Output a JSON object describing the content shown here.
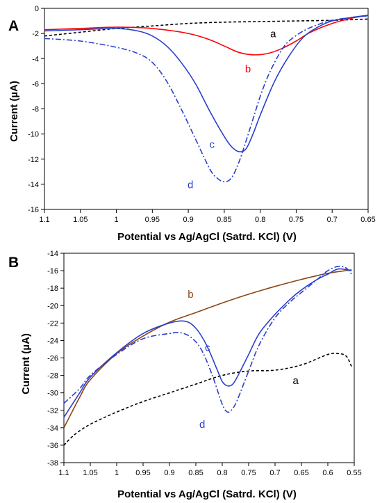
{
  "chart_data": [
    {
      "panel": "A",
      "type": "line",
      "xlabel": "Potential vs Ag/AgCl (Satrd. KCl) (V)",
      "ylabel": "Current (µA)",
      "xlim": [
        1.1,
        0.65
      ],
      "ylim": [
        -16,
        0
      ],
      "xticks": [
        "1.1",
        "1.05",
        "1",
        "0.95",
        "0.9",
        "0.85",
        "0.8",
        "0.75",
        "0.7",
        "0.65"
      ],
      "yticks": [
        "0",
        "-2",
        "-4",
        "-6",
        "-8",
        "-10",
        "-12",
        "-14",
        "-16"
      ],
      "series": [
        {
          "name": "a",
          "color": "#000000",
          "dash": "4,3",
          "x": [
            1.1,
            1.05,
            1.0,
            0.95,
            0.9,
            0.85,
            0.8,
            0.75,
            0.7,
            0.65
          ],
          "y": [
            -2.2,
            -1.9,
            -1.6,
            -1.4,
            -1.2,
            -1.1,
            -1.05,
            -1.0,
            -0.95,
            -0.85
          ]
        },
        {
          "name": "b",
          "color": "#ff0000",
          "dash": "",
          "x": [
            1.1,
            1.05,
            1.0,
            0.95,
            0.9,
            0.87,
            0.85,
            0.83,
            0.81,
            0.79,
            0.77,
            0.75,
            0.73,
            0.7,
            0.67,
            0.65
          ],
          "y": [
            -1.7,
            -1.6,
            -1.5,
            -1.6,
            -2.0,
            -2.5,
            -3.0,
            -3.5,
            -3.7,
            -3.6,
            -3.2,
            -2.6,
            -1.9,
            -1.2,
            -0.75,
            -0.55
          ]
        },
        {
          "name": "c",
          "color": "#2a3fcc",
          "dash": "",
          "x": [
            1.1,
            1.05,
            1.0,
            0.97,
            0.95,
            0.93,
            0.91,
            0.89,
            0.87,
            0.85,
            0.84,
            0.83,
            0.82,
            0.81,
            0.8,
            0.78,
            0.76,
            0.74,
            0.72,
            0.7,
            0.67,
            0.65
          ],
          "y": [
            -1.8,
            -1.7,
            -1.6,
            -1.8,
            -2.2,
            -3.0,
            -4.3,
            -6.0,
            -8.2,
            -10.2,
            -11.0,
            -11.4,
            -11.2,
            -10.0,
            -8.5,
            -5.8,
            -3.8,
            -2.3,
            -1.5,
            -1.0,
            -0.7,
            -0.55
          ]
        },
        {
          "name": "d",
          "color": "#2a3fcc",
          "dash": "8,3,2,3",
          "x": [
            1.1,
            1.05,
            1.0,
            0.97,
            0.95,
            0.93,
            0.91,
            0.89,
            0.87,
            0.86,
            0.85,
            0.84,
            0.83,
            0.82,
            0.81,
            0.8,
            0.79,
            0.78,
            0.77,
            0.76,
            0.74,
            0.72,
            0.7,
            0.67,
            0.65
          ],
          "y": [
            -2.4,
            -2.6,
            -3.1,
            -3.6,
            -4.3,
            -5.8,
            -8.0,
            -10.4,
            -12.8,
            -13.5,
            -13.8,
            -13.5,
            -12.3,
            -10.6,
            -8.8,
            -7.0,
            -5.5,
            -4.3,
            -3.3,
            -2.6,
            -1.8,
            -1.3,
            -0.95,
            -0.7,
            -0.6
          ]
        }
      ],
      "labels": [
        {
          "text": "a",
          "x": 0.782,
          "y": -2.3,
          "color": "#000000"
        },
        {
          "text": "b",
          "x": 0.817,
          "y": -5.1,
          "color": "#ff0000"
        },
        {
          "text": "c",
          "x": 0.867,
          "y": -11.1,
          "color": "#2a3fcc"
        },
        {
          "text": "d",
          "x": 0.897,
          "y": -14.3,
          "color": "#2a3fcc"
        }
      ],
      "letter": "A"
    },
    {
      "panel": "B",
      "type": "line",
      "xlabel": "Potential vs Ag/AgCl (Satrd. KCl) (V)",
      "ylabel": "Current (µA)",
      "xlim": [
        1.1,
        0.55
      ],
      "ylim": [
        -38,
        -14
      ],
      "xticks": [
        "1.1",
        "1.05",
        "1",
        "0.95",
        "0.9",
        "0.85",
        "0.8",
        "0.75",
        "0.7",
        "0.65",
        "0.6",
        "0.55"
      ],
      "yticks": [
        "-14",
        "-16",
        "-18",
        "-20",
        "-22",
        "-24",
        "-26",
        "-28",
        "-30",
        "-32",
        "-34",
        "-36",
        "-38"
      ],
      "series": [
        {
          "name": "a",
          "color": "#000000",
          "dash": "4,3",
          "x": [
            1.1,
            1.08,
            1.05,
            1.0,
            0.95,
            0.9,
            0.85,
            0.8,
            0.75,
            0.7,
            0.65,
            0.6,
            0.58,
            0.565,
            0.555
          ],
          "y": [
            -36.0,
            -34.8,
            -33.6,
            -32.2,
            -31.0,
            -30.0,
            -29.0,
            -28.0,
            -27.5,
            -27.4,
            -26.8,
            -25.6,
            -25.5,
            -25.8,
            -27.0
          ]
        },
        {
          "name": "b",
          "color": "#8b4513",
          "dash": "",
          "x": [
            1.1,
            1.07,
            1.05,
            1.0,
            0.95,
            0.9,
            0.85,
            0.8,
            0.75,
            0.7,
            0.65,
            0.6,
            0.555
          ],
          "y": [
            -34.0,
            -30.5,
            -28.5,
            -25.5,
            -23.5,
            -21.9,
            -20.8,
            -19.7,
            -18.7,
            -17.8,
            -17.0,
            -16.3,
            -15.9
          ]
        },
        {
          "name": "c",
          "color": "#2a3fcc",
          "dash": "",
          "x": [
            1.1,
            1.07,
            1.05,
            1.0,
            0.95,
            0.9,
            0.87,
            0.85,
            0.83,
            0.81,
            0.8,
            0.79,
            0.78,
            0.77,
            0.75,
            0.73,
            0.7,
            0.67,
            0.65,
            0.62,
            0.6,
            0.58,
            0.555
          ],
          "y": [
            -32.8,
            -30.0,
            -28.2,
            -25.4,
            -23.2,
            -22.0,
            -21.8,
            -22.6,
            -24.5,
            -27.3,
            -28.7,
            -29.2,
            -29.0,
            -28.0,
            -25.6,
            -23.2,
            -21.0,
            -19.2,
            -18.2,
            -17.0,
            -16.4,
            -15.8,
            -16.0
          ]
        },
        {
          "name": "d",
          "color": "#2a3fcc",
          "dash": "8,3,2,3",
          "x": [
            1.1,
            1.07,
            1.05,
            1.0,
            0.95,
            0.9,
            0.88,
            0.86,
            0.84,
            0.82,
            0.8,
            0.79,
            0.78,
            0.77,
            0.75,
            0.73,
            0.7,
            0.67,
            0.65,
            0.62,
            0.6,
            0.58,
            0.565,
            0.555
          ],
          "y": [
            -31.2,
            -29.5,
            -28.0,
            -25.6,
            -23.8,
            -23.2,
            -23.1,
            -23.6,
            -25.0,
            -27.8,
            -31.3,
            -32.2,
            -31.8,
            -30.6,
            -27.5,
            -24.5,
            -21.4,
            -19.5,
            -18.5,
            -17.0,
            -16.0,
            -15.5,
            -15.7,
            -16.4
          ]
        }
      ],
      "labels": [
        {
          "text": "b",
          "x": 0.86,
          "y": -19.1,
          "color": "#8b4513"
        },
        {
          "text": "c",
          "x": 0.828,
          "y": -25.2,
          "color": "#2a3fcc"
        },
        {
          "text": "a",
          "x": 0.661,
          "y": -29.0,
          "color": "#000000"
        },
        {
          "text": "d",
          "x": 0.838,
          "y": -34.0,
          "color": "#2a3fcc"
        }
      ],
      "letter": "B"
    }
  ]
}
